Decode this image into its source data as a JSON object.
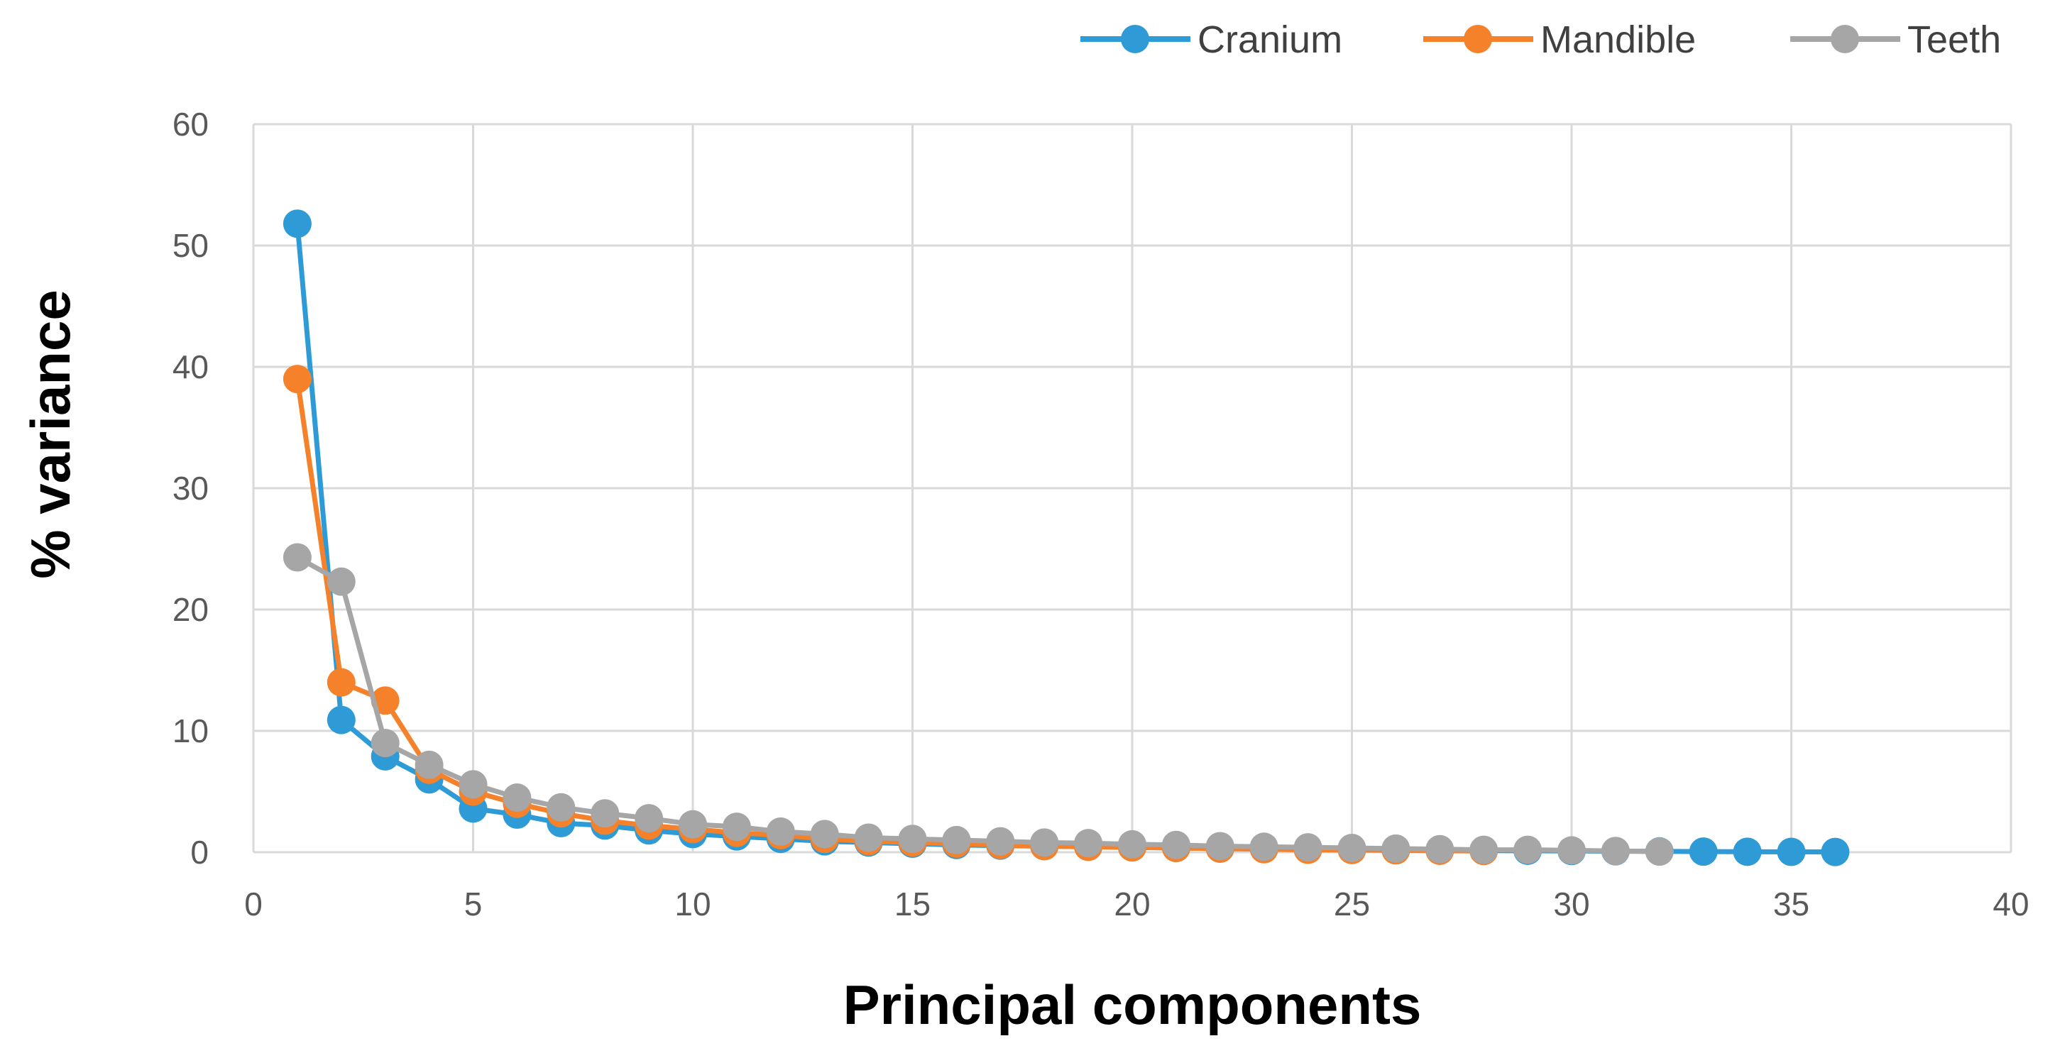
{
  "chart_data": {
    "type": "line",
    "xlabel": "Principal components",
    "ylabel": "% variance",
    "xlim": [
      0,
      40
    ],
    "ylim": [
      0,
      60
    ],
    "xticks": [
      0,
      5,
      10,
      15,
      20,
      25,
      30,
      35,
      40
    ],
    "yticks": [
      0,
      10,
      20,
      30,
      40,
      50,
      60
    ],
    "grid": true,
    "legend_position": "top-right",
    "series": [
      {
        "name": "Cranium",
        "color": "#2e9bd6",
        "x": [
          1,
          2,
          3,
          4,
          5,
          6,
          7,
          8,
          9,
          10,
          11,
          12,
          13,
          14,
          15,
          16,
          17,
          18,
          19,
          20,
          21,
          22,
          23,
          24,
          25,
          26,
          27,
          28,
          29,
          30,
          31,
          32,
          33,
          34,
          35,
          36
        ],
        "values": [
          51.8,
          10.9,
          7.9,
          6.0,
          3.6,
          3.1,
          2.4,
          2.2,
          1.8,
          1.5,
          1.3,
          1.1,
          0.9,
          0.8,
          0.7,
          0.6,
          0.55,
          0.5,
          0.45,
          0.4,
          0.35,
          0.3,
          0.27,
          0.24,
          0.21,
          0.18,
          0.16,
          0.14,
          0.12,
          0.1,
          0.08,
          0.07,
          0.05,
          0.04,
          0.03,
          0.02
        ]
      },
      {
        "name": "Mandible",
        "color": "#f5822a",
        "x": [
          1,
          2,
          3,
          4,
          5,
          6,
          7,
          8,
          9,
          10,
          11,
          12,
          13,
          14,
          15,
          16,
          17,
          18,
          19,
          20,
          21,
          22,
          23,
          24,
          25,
          26,
          27,
          28
        ],
        "values": [
          39.0,
          14.0,
          12.5,
          6.8,
          5.0,
          4.0,
          3.2,
          2.6,
          2.2,
          1.9,
          1.6,
          1.4,
          1.1,
          0.9,
          0.8,
          0.7,
          0.6,
          0.5,
          0.45,
          0.4,
          0.35,
          0.3,
          0.25,
          0.2,
          0.18,
          0.15,
          0.12,
          0.1
        ]
      },
      {
        "name": "Teeth",
        "color": "#a6a6a6",
        "x": [
          1,
          2,
          3,
          4,
          5,
          6,
          7,
          8,
          9,
          10,
          11,
          12,
          13,
          14,
          15,
          16,
          17,
          18,
          19,
          20,
          21,
          22,
          23,
          24,
          25,
          26,
          27,
          28,
          29,
          30,
          31,
          32
        ],
        "values": [
          24.3,
          22.3,
          9.0,
          7.2,
          5.6,
          4.5,
          3.7,
          3.2,
          2.8,
          2.3,
          2.1,
          1.7,
          1.5,
          1.2,
          1.1,
          1.0,
          0.9,
          0.8,
          0.75,
          0.65,
          0.6,
          0.5,
          0.45,
          0.4,
          0.35,
          0.3,
          0.25,
          0.2,
          0.2,
          0.15,
          0.1,
          0.05
        ]
      }
    ]
  }
}
